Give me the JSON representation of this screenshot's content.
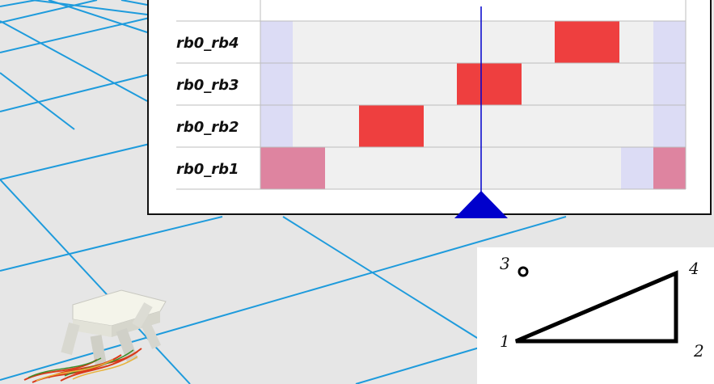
{
  "gait_chart": {
    "rows": [
      {
        "label": "rb0_rb4"
      },
      {
        "label": "rb0_rb3"
      },
      {
        "label": "rb0_rb2"
      },
      {
        "label": "rb0_rb1"
      }
    ],
    "colors": {
      "row_background": "#f0f0f0",
      "phase_light": "#dcdcf5",
      "stance_red": "#ee3f3f",
      "stance_pink": "#de84a0",
      "cursor": "#0000cc",
      "grid_line": "#bdbdbd"
    }
  },
  "leg_diagram": {
    "labels": {
      "leg1": "1",
      "leg2": "2",
      "leg3": "3",
      "leg4": "4"
    },
    "selected_legs": [
      "1",
      "2",
      "4"
    ],
    "lifted_leg": "3"
  },
  "scene": {
    "floor_color": "#e6e6e6",
    "grid_color": "#1e9bdc",
    "icons": {
      "robot": "hexapod-robot-icon",
      "marker": "time-marker-icon"
    }
  }
}
